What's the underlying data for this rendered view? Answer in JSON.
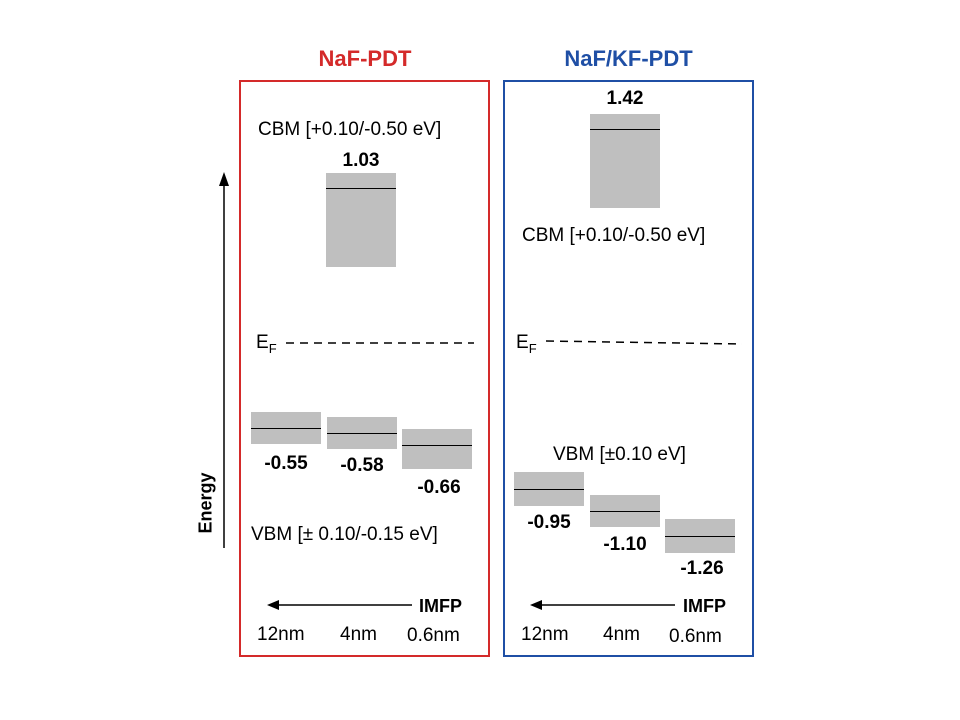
{
  "colors": {
    "left_border": "#d42a2a",
    "right_border": "#1f4fa5",
    "level_fill": "#bfbfbf"
  },
  "axis": {
    "energy_label": "Energy"
  },
  "left_panel": {
    "title": "NaF-PDT",
    "cbm_label": "CBM [+0.10/-0.50 eV]",
    "cbm_value": "1.03",
    "ef_main": "E",
    "ef_sub": "F",
    "vbm_values": [
      "-0.55",
      "-0.58",
      "-0.66"
    ],
    "vbm_label": "VBM [± 0.10/-0.15  eV]",
    "imfp_label": "IMFP",
    "depths": [
      "12nm",
      "4nm",
      "0.6nm"
    ]
  },
  "right_panel": {
    "title": "NaF/KF-PDT",
    "cbm_value": "1.42",
    "cbm_label": "CBM [+0.10/-0.50 eV]",
    "ef_main": "E",
    "ef_sub": "F",
    "vbm_label": "VBM [±0.10 eV]",
    "vbm_values": [
      "-0.95",
      "-1.10",
      "-1.26"
    ],
    "imfp_label": "IMFP",
    "depths": [
      "12nm",
      "4nm",
      "0.6nm"
    ]
  }
}
